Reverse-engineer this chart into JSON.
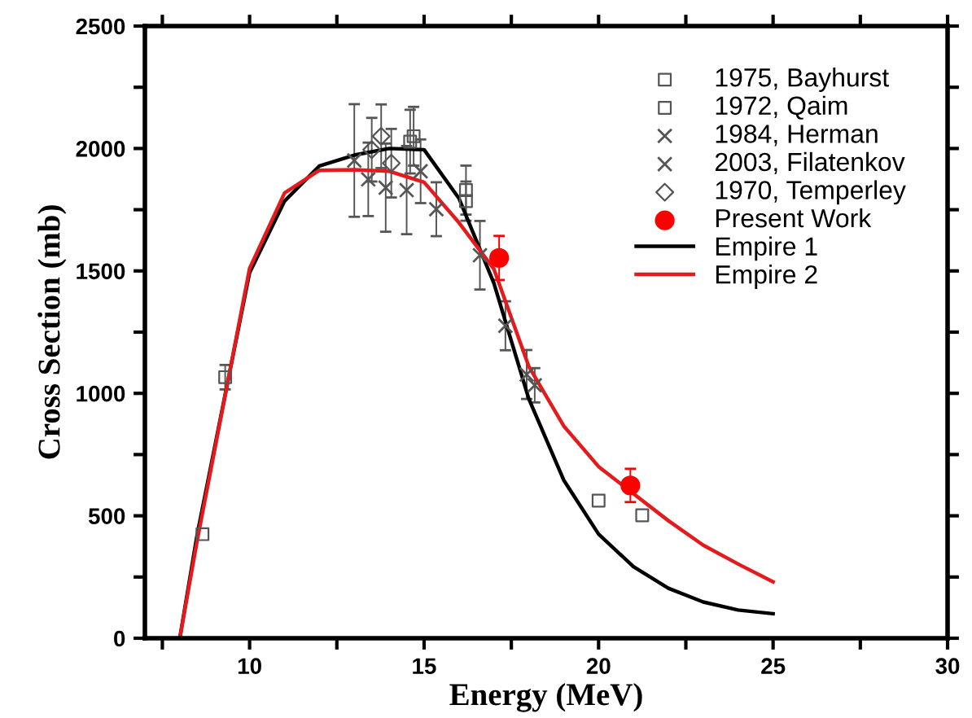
{
  "chart_data": {
    "type": "scatter",
    "xlabel": "Energy (MeV)",
    "ylabel": "Cross Section (mb)",
    "xlim": [
      7,
      30
    ],
    "ylim": [
      0,
      2500
    ],
    "xticks": [
      {
        "value": 7.5,
        "label": null
      },
      10,
      {
        "value": 12.5,
        "label": null
      },
      15,
      {
        "value": 17.5,
        "label": null
      },
      20,
      {
        "value": 22.5,
        "label": null
      },
      25,
      {
        "value": 27.5,
        "label": null
      },
      30
    ],
    "yticks": [
      0,
      {
        "value": 250,
        "label": null
      },
      500,
      {
        "value": 750,
        "label": null
      },
      1000,
      {
        "value": 1250,
        "label": null
      },
      1500,
      {
        "value": 1750,
        "label": null
      },
      2000,
      {
        "value": 2250,
        "label": null
      },
      2500
    ],
    "legend": "top right",
    "grid": false,
    "series": [
      {
        "name": "1975, Bayhurst",
        "marker": "square",
        "color": "#555555",
        "x": [
          8.65,
          9.3,
          16.2,
          16.2,
          20.0,
          21.25
        ],
        "values": [
          425,
          1066,
          1830,
          1785,
          562,
          502
        ],
        "errors": [
          null,
          50,
          100,
          80,
          null,
          null
        ]
      },
      {
        "name": "1972, Qaim",
        "marker": "square",
        "color": "#555555",
        "x": [
          14.6,
          14.7
        ],
        "values": [
          2028,
          2050
        ],
        "errors": [
          130,
          120
        ]
      },
      {
        "name": "1984, Herman",
        "marker": "cross",
        "color": "#555555",
        "x": [
          13.0,
          13.4,
          13.9,
          14.5,
          15.35,
          16.6,
          17.33
        ],
        "values": [
          1951,
          1874,
          1840,
          1830,
          1752,
          1564,
          1276
        ],
        "errors": [
          230,
          150,
          180,
          180,
          110,
          140,
          100
        ]
      },
      {
        "name": "2003, Filatenkov",
        "marker": "cross",
        "color": "#555555",
        "x": [
          14.9,
          17.94,
          18.17
        ],
        "values": [
          1907,
          1077,
          1033
        ],
        "errors": [
          130,
          100,
          70
        ]
      },
      {
        "name": "1970, Temperley",
        "marker": "diamond",
        "color": "#555555",
        "x": [
          13.5,
          13.77,
          14.06
        ],
        "values": [
          1995,
          2050,
          1940
        ],
        "errors": [
          130,
          130,
          140
        ]
      },
      {
        "name": "Present Work",
        "marker": "circle",
        "color": "#ff0000",
        "x": [
          17.15,
          20.91
        ],
        "values": [
          1553,
          624
        ],
        "errors": [
          90,
          68
        ]
      },
      {
        "name": "Empire 1",
        "type": "line",
        "marker": "none",
        "color": "#000000",
        "x": [
          8,
          8.5,
          10,
          11,
          12,
          13,
          14,
          15,
          16,
          17,
          18,
          19,
          20,
          21,
          22,
          23,
          24,
          25
        ],
        "values": [
          0,
          425,
          1493,
          1785,
          1929,
          1973,
          2000,
          1995,
          1796,
          1450,
          978,
          646,
          425,
          292,
          204,
          148,
          115,
          100
        ]
      },
      {
        "name": "Empire 2",
        "type": "line",
        "marker": "none",
        "color": "#e41a1c",
        "x": [
          8,
          8.5,
          10,
          11,
          12,
          13,
          14,
          15,
          16,
          17,
          18,
          19,
          20,
          21,
          22,
          23,
          24,
          25
        ],
        "values": [
          0,
          400,
          1510,
          1818,
          1911,
          1913,
          1907,
          1862,
          1697,
          1508,
          1110,
          867,
          701,
          590,
          480,
          380,
          303,
          230
        ]
      }
    ]
  }
}
